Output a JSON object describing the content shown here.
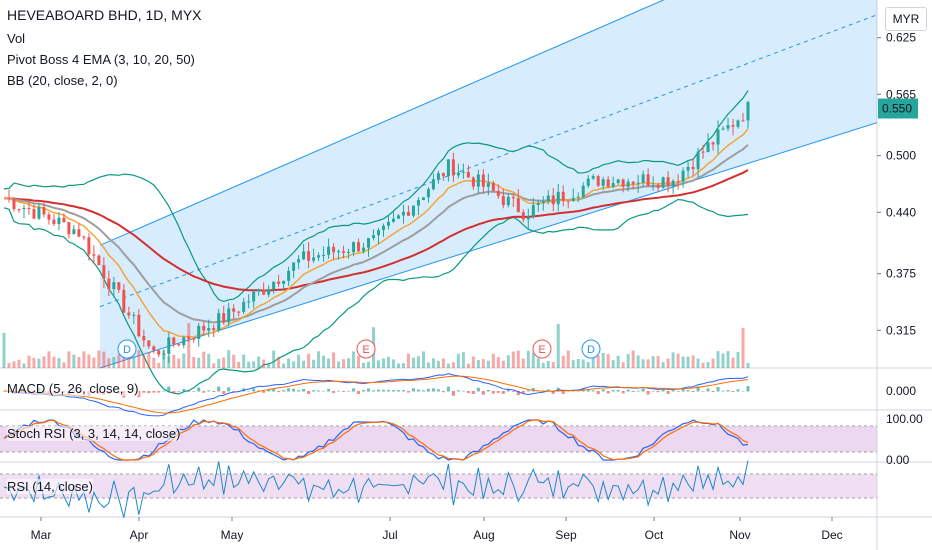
{
  "header": {
    "symbol_line": "HEVEABOARD BHD, 1D, MYX",
    "indicator_vol": "Vol",
    "indicator_ema": "Pivot Boss 4 EMA (3, 10, 20, 50)",
    "indicator_bb": "BB (20, close, 2, 0)",
    "currency": "MYR"
  },
  "panes": {
    "macd_label": "MACD (5, 26, close, 9)",
    "stoch_label": "Stoch RSI (3, 3, 14, 14, close)",
    "rsi_label": "RSI (14, close)"
  },
  "colors": {
    "up": "#26a69a",
    "down": "#ef5350",
    "ema3": "#ff9800",
    "ema10": "#f5a53a",
    "ema20": "#9e9e9e",
    "ema50": "#d32f2f",
    "bb": "#089981",
    "channel": "#2196f3",
    "stoch_k": "#2962ff",
    "stoch_d": "#ff6d00",
    "rsi": "#1e88c7",
    "band_fill": "#e1bee7"
  },
  "chart_data": [
    {
      "type": "candlestick",
      "title": "HEVEABOARD BHD, 1D, MYX",
      "x_ticks": [
        "Mar",
        "Apr",
        "May",
        "Jul",
        "Aug",
        "Sep",
        "Oct",
        "Nov",
        "Dec"
      ],
      "y_ticks": [
        "0.625",
        "0.565",
        "0.500",
        "0.440",
        "0.375",
        "0.315"
      ],
      "y_range": [
        0.28,
        0.68
      ],
      "last_price": "0.550",
      "event_markers": [
        "D",
        "E",
        "E",
        "D"
      ],
      "approx_closes": [
        {
          "month": "Mar start",
          "value": 0.455
        },
        {
          "month": "Mar mid",
          "value": 0.42
        },
        {
          "month": "Mar low",
          "value": 0.29
        },
        {
          "month": "Apr",
          "value": 0.33
        },
        {
          "month": "May",
          "value": 0.39
        },
        {
          "month": "Jun",
          "value": 0.41
        },
        {
          "month": "Jul peak",
          "value": 0.49
        },
        {
          "month": "Aug",
          "value": 0.44
        },
        {
          "month": "Sep",
          "value": 0.475
        },
        {
          "month": "Oct",
          "value": 0.475
        },
        {
          "month": "Nov",
          "value": 0.55
        }
      ]
    },
    {
      "type": "line",
      "title": "MACD (5, 26, close, 9)",
      "y_ticks": [
        "0.000"
      ]
    },
    {
      "type": "line",
      "title": "Stoch RSI (3, 3, 14, 14, close)",
      "y_ticks": [
        "100.00",
        "0.00"
      ]
    },
    {
      "type": "line",
      "title": "RSI (14, close)"
    }
  ]
}
